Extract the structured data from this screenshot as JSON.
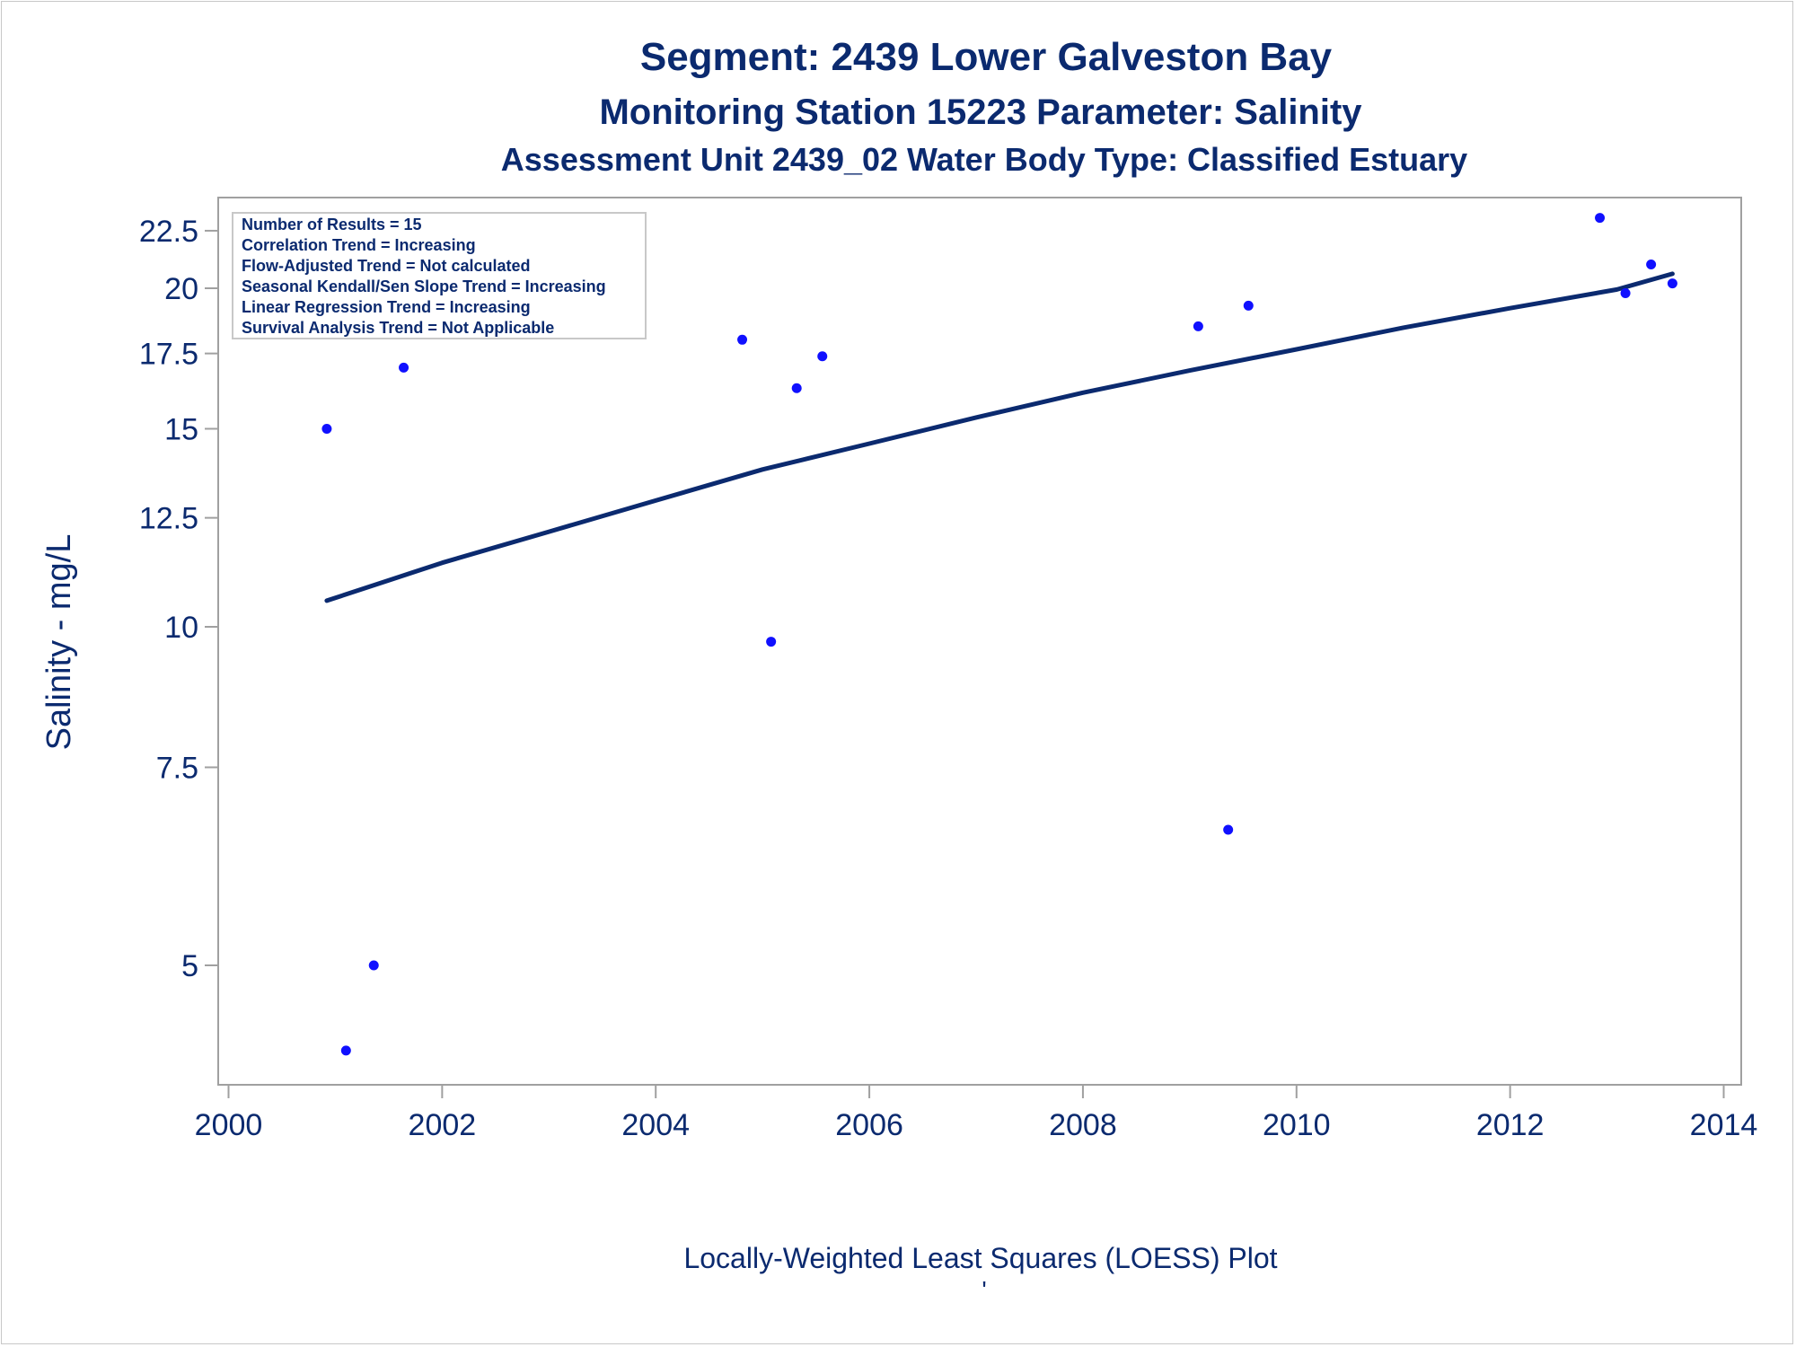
{
  "titles": {
    "line1": "Segment: 2439  Lower Galveston Bay",
    "line2": "Monitoring Station 15223 Parameter: Salinity",
    "line3": "Assessment Unit 2439_02   Water Body Type: Classified Estuary"
  },
  "stats_box": [
    "Number of Results = 15",
    "Correlation Trend = Increasing",
    "Flow-Adjusted Trend = Not calculated",
    "Seasonal Kendall/Sen Slope Trend = Increasing",
    "Linear Regression Trend = Increasing",
    "Survival Analysis Trend = Not Applicable"
  ],
  "footnote": "'",
  "colors": {
    "text": "#0b2a6f",
    "points": "#1010ff",
    "line": "#0b2a6f",
    "axis": "#a0a0a0"
  },
  "chart_data": {
    "type": "scatter",
    "title": "Segment: 2439  Lower Galveston Bay",
    "xlabel": "Locally-Weighted Least Squares (LOESS) Plot",
    "ylabel": "Salinity - mg/L",
    "yscale": "log",
    "xlim": [
      2000,
      2014
    ],
    "ylim": [
      4.2,
      23.8
    ],
    "x_ticks": [
      2000,
      2002,
      2004,
      2006,
      2008,
      2010,
      2012,
      2014
    ],
    "y_ticks": [
      5,
      7.5,
      10,
      12.5,
      15,
      17.5,
      20,
      22.5
    ],
    "y_tick_labels": [
      "5",
      "7.5",
      "10",
      "12.5",
      "15",
      "17.5",
      "20",
      "22.5"
    ],
    "legend": "top-left",
    "grid": false,
    "series": [
      {
        "type": "scatter",
        "x": [
          2000.92,
          2001.1,
          2001.36,
          2001.64,
          2004.81,
          2005.08,
          2005.32,
          2005.56,
          2009.08,
          2009.36,
          2009.55,
          2012.84,
          2013.08,
          2013.32,
          2013.52
        ],
        "y": [
          15.0,
          4.2,
          5.0,
          17.0,
          18.0,
          9.7,
          16.3,
          17.4,
          18.5,
          6.6,
          19.3,
          23.1,
          19.8,
          21.0,
          20.2
        ]
      },
      {
        "type": "line",
        "x": [
          2000.92,
          2001.5,
          2002,
          2003,
          2004,
          2005,
          2006,
          2007,
          2008,
          2009,
          2010,
          2011,
          2012,
          2013,
          2013.52
        ],
        "y": [
          10.55,
          11.0,
          11.4,
          12.15,
          12.95,
          13.8,
          14.55,
          15.35,
          16.15,
          16.9,
          17.65,
          18.45,
          19.2,
          19.95,
          20.6
        ]
      }
    ]
  }
}
